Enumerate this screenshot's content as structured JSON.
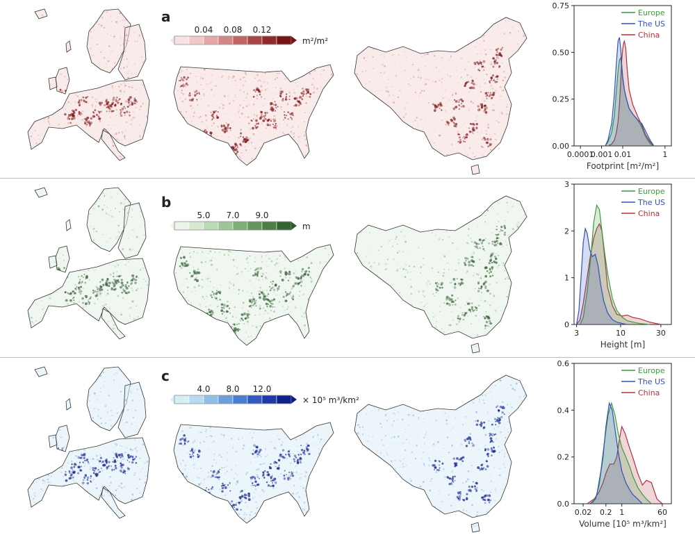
{
  "panels": [
    {
      "letter": "a",
      "color_dark": "#7a1010",
      "color_light": "#f6dada",
      "palette": [
        "#f7e3e3",
        "#efc8c8",
        "#e2a8a8",
        "#d28787",
        "#c06565",
        "#a84545",
        "#8f2a2a",
        "#731414"
      ],
      "map_tint": "#b04848",
      "colorbar": {
        "ticks": [
          "0.04",
          "0.08",
          "0.12"
        ],
        "unit": "m²/m²"
      },
      "chart_data": {
        "type": "area",
        "xlabel": "Footprint [m²/m²]",
        "xscale": "log",
        "xticks": [
          "0.0001",
          "0.001",
          "0.01",
          "1"
        ],
        "xtick_values": [
          0.0001,
          0.001,
          0.01,
          1
        ],
        "xlim": [
          5e-05,
          2
        ],
        "ylim": [
          0,
          0.75
        ],
        "yticks": [
          "0.00",
          "0.25",
          "0.50",
          "0.75"
        ],
        "ytick_values": [
          0,
          0.25,
          0.5,
          0.75
        ],
        "legend_position": "top-right",
        "series": [
          {
            "name": "China",
            "color": "#b0303a",
            "x": [
              0.002,
              0.003,
              0.004,
              0.005,
              0.006,
              0.007,
              0.008,
              0.009,
              0.01,
              0.011,
              0.012,
              0.014,
              0.016,
              0.02,
              0.03,
              0.05,
              0.08,
              0.12,
              0.2,
              0.3
            ],
            "y": [
              0,
              0.01,
              0.03,
              0.07,
              0.13,
              0.22,
              0.34,
              0.46,
              0.52,
              0.55,
              0.56,
              0.52,
              0.42,
              0.3,
              0.22,
              0.16,
              0.11,
              0.06,
              0.02,
              0
            ]
          },
          {
            "name": "Europe",
            "color": "#3c9a3c",
            "x": [
              0.0015,
              0.002,
              0.003,
              0.004,
              0.005,
              0.006,
              0.007,
              0.008,
              0.009,
              0.01,
              0.012,
              0.015,
              0.02,
              0.03,
              0.05,
              0.08,
              0.12,
              0.2,
              0.3
            ],
            "y": [
              0,
              0.02,
              0.07,
              0.16,
              0.29,
              0.4,
              0.46,
              0.47,
              0.43,
              0.37,
              0.3,
              0.25,
              0.2,
              0.17,
              0.14,
              0.1,
              0.05,
              0.01,
              0
            ]
          },
          {
            "name": "The US",
            "color": "#3050b8",
            "x": [
              0.0015,
              0.002,
              0.003,
              0.004,
              0.005,
              0.006,
              0.007,
              0.008,
              0.009,
              0.01,
              0.012,
              0.015,
              0.02,
              0.03,
              0.05,
              0.08,
              0.12,
              0.2,
              0.3
            ],
            "y": [
              0,
              0.03,
              0.12,
              0.27,
              0.44,
              0.56,
              0.58,
              0.52,
              0.43,
              0.36,
              0.3,
              0.25,
              0.2,
              0.17,
              0.14,
              0.12,
              0.08,
              0.03,
              0
            ]
          }
        ]
      }
    },
    {
      "letter": "b",
      "color_dark": "#2d5c2d",
      "color_light": "#e3f0e3",
      "palette": [
        "#eaf4e8",
        "#d5e9d1",
        "#bcd9b6",
        "#9fc597",
        "#80ae77",
        "#64975a",
        "#4b7e42",
        "#336330"
      ],
      "map_tint": "#3d7a3d",
      "colorbar": {
        "ticks": [
          "5.0",
          "7.0",
          "9.0"
        ],
        "unit": "m"
      },
      "chart_data": {
        "type": "area",
        "xlabel": "Height [m]",
        "xscale": "log",
        "xticks": [
          "3",
          "10",
          "30"
        ],
        "xtick_values": [
          3,
          10,
          30
        ],
        "xlim": [
          2.8,
          40
        ],
        "ylim": [
          0,
          3
        ],
        "yticks": [
          "0",
          "1",
          "2",
          "3"
        ],
        "ytick_values": [
          0,
          1,
          2,
          3
        ],
        "legend_position": "top-right",
        "series": [
          {
            "name": "China",
            "color": "#b0303a",
            "x": [
              3.0,
              3.3,
              3.6,
              4.0,
              4.4,
              4.8,
              5.2,
              5.6,
              6.0,
              6.5,
              7.0,
              8.0,
              9.0,
              10.5,
              12,
              14,
              17,
              22,
              30
            ],
            "y": [
              0,
              0.1,
              0.45,
              1.0,
              1.5,
              1.85,
              2.05,
              2.15,
              2.0,
              1.4,
              0.8,
              0.4,
              0.22,
              0.18,
              0.2,
              0.15,
              0.12,
              0.05,
              0
            ]
          },
          {
            "name": "Europe",
            "color": "#3c9a3c",
            "x": [
              3.3,
              3.6,
              4.0,
              4.4,
              4.8,
              5.2,
              5.6,
              6.0,
              6.5,
              7.0,
              7.5,
              8.0,
              9.0,
              10.5,
              12,
              14,
              17,
              22
            ],
            "y": [
              0,
              0.15,
              0.7,
              1.4,
              2.2,
              2.55,
              2.45,
              2.0,
              1.5,
              1.1,
              0.8,
              0.55,
              0.3,
              0.15,
              0.08,
              0.05,
              0.02,
              0
            ]
          },
          {
            "name": "The US",
            "color": "#3050b8",
            "x": [
              3.0,
              3.2,
              3.4,
              3.6,
              3.8,
              4.0,
              4.3,
              4.6,
              5.0,
              5.4,
              5.8,
              6.3,
              7.0,
              8.0,
              9.0,
              10.5,
              12
            ],
            "y": [
              0,
              0.3,
              1.05,
              1.75,
              2.05,
              1.95,
              1.6,
              1.45,
              1.5,
              1.25,
              0.85,
              0.5,
              0.25,
              0.1,
              0.05,
              0.02,
              0
            ]
          }
        ]
      }
    },
    {
      "letter": "c",
      "color_dark": "#0d1c8a",
      "color_light": "#ddeef5",
      "palette": [
        "#d7eef6",
        "#b6dbef",
        "#8fbfe6",
        "#6a9fdc",
        "#4a7ed0",
        "#3159c0",
        "#1f39a8",
        "#0f2188"
      ],
      "map_tint": "#3a78c8",
      "colorbar": {
        "ticks": [
          "4.0",
          "8.0",
          "12.0"
        ],
        "unit": "× 10⁵ m³/km²"
      },
      "chart_data": {
        "type": "area",
        "xlabel": "Volume [10⁵ m³/km²]",
        "xscale": "log",
        "xticks": [
          "0.02",
          "0.2",
          "1",
          "60"
        ],
        "xtick_values": [
          0.02,
          0.2,
          1,
          60
        ],
        "xlim": [
          0.008,
          150
        ],
        "ylim": [
          0,
          0.6
        ],
        "yticks": [
          "0.0",
          "0.2",
          "0.4",
          "0.6"
        ],
        "ytick_values": [
          0,
          0.2,
          0.4,
          0.6
        ],
        "legend_position": "top-right",
        "series": [
          {
            "name": "China",
            "color": "#b0303a",
            "x": [
              0.03,
              0.06,
              0.1,
              0.15,
              0.2,
              0.3,
              0.45,
              0.6,
              0.8,
              1.0,
              1.4,
              2.0,
              3,
              5,
              8,
              12,
              20,
              35,
              60
            ],
            "y": [
              0,
              0.02,
              0.05,
              0.09,
              0.13,
              0.17,
              0.17,
              0.2,
              0.28,
              0.33,
              0.3,
              0.25,
              0.2,
              0.13,
              0.08,
              0.1,
              0.09,
              0.02,
              0
            ]
          },
          {
            "name": "Europe",
            "color": "#3c9a3c",
            "x": [
              0.05,
              0.08,
              0.12,
              0.18,
              0.25,
              0.35,
              0.5,
              0.7,
              1.0,
              1.5,
              2.2,
              3,
              5,
              8,
              12,
              20
            ],
            "y": [
              0,
              0.04,
              0.14,
              0.28,
              0.38,
              0.43,
              0.38,
              0.3,
              0.24,
              0.2,
              0.16,
              0.12,
              0.07,
              0.04,
              0.02,
              0
            ]
          },
          {
            "name": "The US",
            "color": "#3050b8",
            "x": [
              0.04,
              0.07,
              0.1,
              0.15,
              0.2,
              0.28,
              0.38,
              0.5,
              0.7,
              1.0,
              1.5,
              2.2,
              3,
              5,
              8
            ],
            "y": [
              0,
              0.02,
              0.08,
              0.2,
              0.33,
              0.43,
              0.4,
              0.32,
              0.22,
              0.14,
              0.09,
              0.06,
              0.04,
              0.02,
              0
            ]
          }
        ]
      }
    }
  ]
}
